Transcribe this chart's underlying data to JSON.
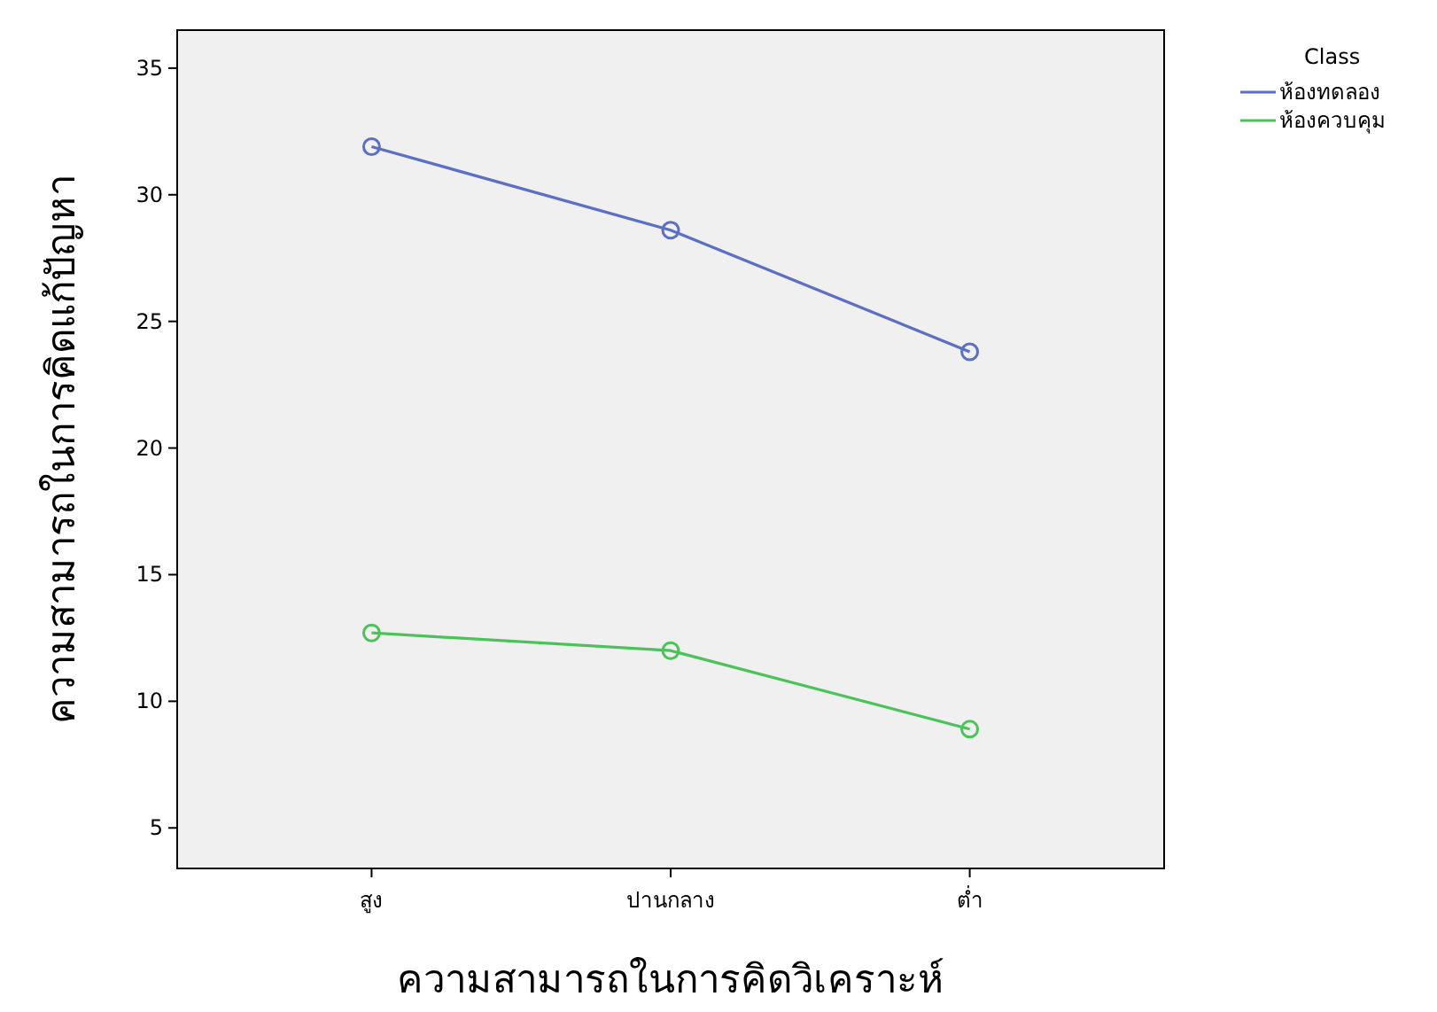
{
  "chart_data": {
    "type": "line",
    "xlabel": "ความสามารถในการคิดวิเคราะห์",
    "ylabel": "ความสามารถในการคิดแก้ปัญหา",
    "legend_title": "Class",
    "categories": [
      "สูง",
      "ปานกลาง",
      "ต่ำ"
    ],
    "series": [
      {
        "name": "ห้องทดลอง",
        "color": "#5b6fc4",
        "values": [
          31.9,
          28.6,
          23.8
        ]
      },
      {
        "name": "ห้องควบคุม",
        "color": "#4cc35a",
        "values": [
          12.7,
          12.0,
          8.9
        ]
      }
    ],
    "ylim": [
      3.4,
      36.5
    ],
    "yticks": [
      5,
      10,
      15,
      20,
      25,
      30,
      35
    ],
    "grid": false,
    "legend": "top right",
    "marker": "circle",
    "line_style": "solid"
  }
}
